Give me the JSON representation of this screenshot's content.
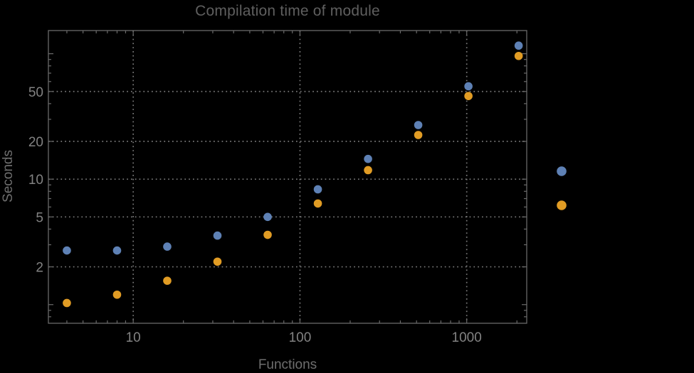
{
  "chart_data": {
    "type": "scatter",
    "title": "Compilation time of module",
    "xlabel": "Functions",
    "ylabel": "Seconds",
    "x_scale": "log",
    "y_scale": "log",
    "grid": "dotted",
    "x": [
      4,
      8,
      16,
      32,
      64,
      128,
      256,
      512,
      1024,
      2048
    ],
    "series": [
      {
        "color": "#5e81b5",
        "marker": "circle",
        "values": [
          2.7,
          2.7,
          2.9,
          3.55,
          5.0,
          8.3,
          14.5,
          27,
          55,
          116
        ]
      },
      {
        "color": "#e19c24",
        "marker": "circle",
        "values": [
          1.03,
          1.2,
          1.55,
          2.2,
          3.6,
          6.4,
          11.8,
          22.5,
          46,
          96
        ]
      }
    ],
    "x_tick_labels": [
      10,
      100,
      1000
    ],
    "y_tick_labels": [
      2,
      5,
      10,
      20,
      50
    ],
    "x_range": [
      3.1,
      2290
    ],
    "y_range": [
      0.71,
      153
    ],
    "legend": {
      "labels_visible": false,
      "marker_colors": [
        "#5e81b5",
        "#e19c24"
      ]
    },
    "colors": {
      "background": "#000000",
      "frame": "#6a6a6a",
      "grid": "#7a7a7a",
      "tick_label": "#828282",
      "axis_label": "#6e6e6e",
      "title": "#5f5f5f"
    }
  }
}
